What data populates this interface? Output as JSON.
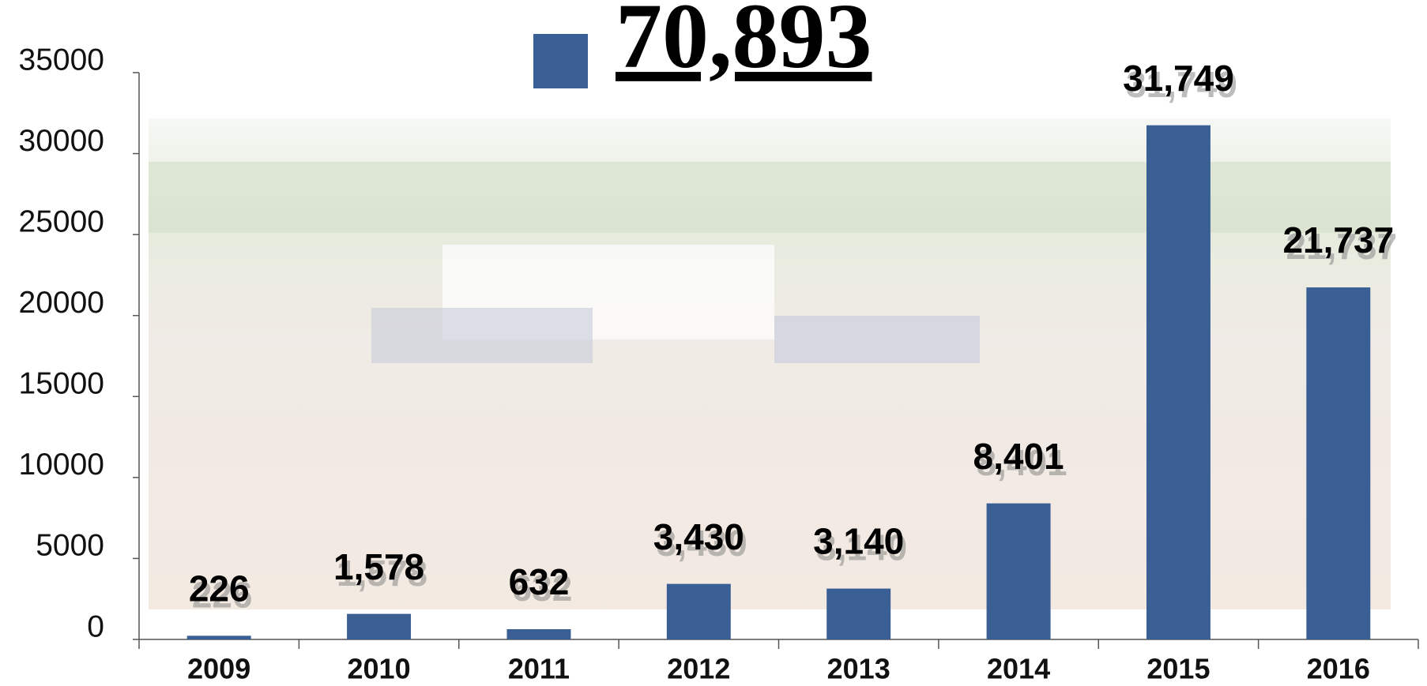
{
  "chart_data": {
    "type": "bar",
    "categories": [
      "2009",
      "2010",
      "2011",
      "2012",
      "2013",
      "2014",
      "2015",
      "2016"
    ],
    "series": [
      {
        "name": "70,893",
        "color": "#3a5f94",
        "values": [
          226,
          1578,
          632,
          3430,
          3140,
          8401,
          31749,
          21737
        ],
        "value_labels": [
          "226",
          "1,578",
          "632",
          "3,430",
          "3,140",
          "8,401",
          "31,749",
          "21,737"
        ]
      }
    ],
    "ylim": [
      0,
      35000
    ],
    "yticks": [
      0,
      5000,
      10000,
      15000,
      20000,
      25000,
      30000,
      35000
    ],
    "grid": false
  }
}
